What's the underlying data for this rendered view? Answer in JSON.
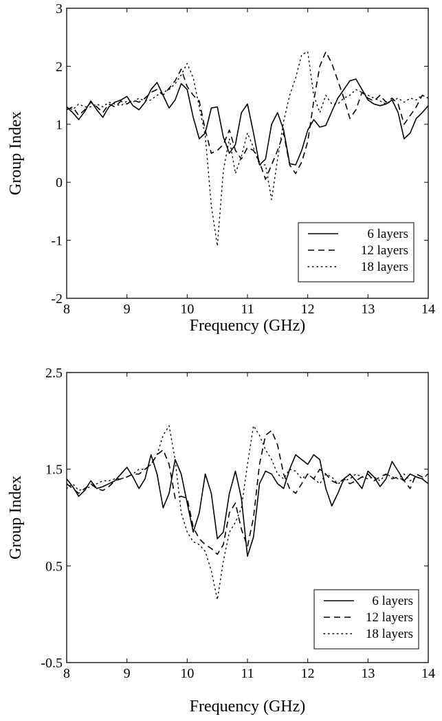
{
  "chart_data": [
    {
      "type": "line",
      "title": "",
      "xlabel": "Frequency (GHz)",
      "ylabel": "Group Index",
      "xlim": [
        8,
        14
      ],
      "ylim": [
        -2,
        3
      ],
      "xticks": [
        8,
        9,
        10,
        11,
        12,
        13,
        14
      ],
      "xtick_labels": [
        "8",
        "9",
        "10",
        "11",
        "12",
        "13",
        "14"
      ],
      "yticks": [
        -2,
        -1,
        0,
        1,
        2,
        3
      ],
      "ytick_labels": [
        "-2",
        "-1",
        "0",
        "1",
        "2",
        "3"
      ],
      "grid": false,
      "legend_position": "lower-right",
      "series": [
        {
          "name": "6 layers",
          "style": "solid",
          "x": [
            8,
            8.1,
            8.2,
            8.3,
            8.4,
            8.5,
            8.6,
            8.7,
            8.8,
            8.9,
            9,
            9.1,
            9.2,
            9.3,
            9.4,
            9.5,
            9.6,
            9.7,
            9.8,
            9.9,
            10,
            10.1,
            10.2,
            10.3,
            10.4,
            10.5,
            10.6,
            10.7,
            10.8,
            10.9,
            11,
            11.1,
            11.2,
            11.3,
            11.4,
            11.5,
            11.6,
            11.7,
            11.8,
            11.9,
            12,
            12.1,
            12.2,
            12.3,
            12.4,
            12.5,
            12.6,
            12.7,
            12.8,
            12.9,
            13,
            13.1,
            13.2,
            13.3,
            13.4,
            13.5,
            13.6,
            13.7,
            13.8,
            13.9,
            14
          ],
          "y": [
            1.3,
            1.2,
            1.08,
            1.22,
            1.4,
            1.25,
            1.12,
            1.3,
            1.38,
            1.42,
            1.48,
            1.32,
            1.25,
            1.38,
            1.6,
            1.72,
            1.5,
            1.28,
            1.42,
            1.7,
            1.6,
            1.12,
            0.75,
            0.85,
            1.28,
            1.3,
            0.78,
            0.5,
            0.65,
            1.2,
            1.35,
            0.85,
            0.3,
            0.4,
            1.0,
            1.2,
            0.9,
            0.32,
            0.3,
            0.55,
            0.9,
            1.08,
            0.95,
            0.98,
            1.22,
            1.45,
            1.6,
            1.75,
            1.78,
            1.6,
            1.42,
            1.35,
            1.32,
            1.35,
            1.42,
            1.2,
            0.75,
            0.85,
            1.1,
            1.2,
            1.32
          ]
        },
        {
          "name": "12 layers",
          "style": "dashed",
          "x": [
            8,
            8.1,
            8.2,
            8.3,
            8.4,
            8.5,
            8.6,
            8.7,
            8.8,
            8.9,
            9,
            9.1,
            9.2,
            9.3,
            9.4,
            9.5,
            9.6,
            9.7,
            9.8,
            9.9,
            10,
            10.1,
            10.2,
            10.3,
            10.4,
            10.5,
            10.6,
            10.7,
            10.8,
            10.9,
            11,
            11.1,
            11.2,
            11.3,
            11.4,
            11.5,
            11.6,
            11.7,
            11.8,
            11.9,
            12,
            12.1,
            12.2,
            12.3,
            12.4,
            12.5,
            12.6,
            12.7,
            12.8,
            12.9,
            13,
            13.1,
            13.2,
            13.3,
            13.4,
            13.5,
            13.6,
            13.7,
            13.8,
            13.9,
            14
          ],
          "y": [
            1.25,
            1.3,
            1.15,
            1.25,
            1.38,
            1.3,
            1.2,
            1.35,
            1.3,
            1.4,
            1.35,
            1.42,
            1.38,
            1.45,
            1.55,
            1.6,
            1.5,
            1.62,
            1.75,
            1.95,
            1.65,
            1.5,
            1.4,
            0.9,
            0.5,
            0.55,
            0.65,
            0.9,
            0.55,
            0.4,
            0.6,
            0.55,
            0.35,
            0.05,
            0.3,
            0.55,
            0.85,
            0.3,
            0.15,
            0.35,
            0.7,
            1.4,
            2.0,
            2.25,
            2.05,
            1.75,
            1.45,
            1.1,
            1.25,
            1.55,
            1.45,
            1.4,
            1.5,
            1.38,
            1.45,
            1.35,
            1.0,
            1.15,
            1.3,
            1.5,
            1.45
          ]
        },
        {
          "name": "18 layers",
          "style": "dotted",
          "x": [
            8,
            8.1,
            8.2,
            8.3,
            8.4,
            8.5,
            8.6,
            8.7,
            8.8,
            8.9,
            9,
            9.1,
            9.2,
            9.3,
            9.4,
            9.5,
            9.6,
            9.7,
            9.8,
            9.9,
            10,
            10.1,
            10.2,
            10.3,
            10.4,
            10.5,
            10.6,
            10.7,
            10.8,
            10.9,
            11,
            11.1,
            11.2,
            11.3,
            11.4,
            11.5,
            11.6,
            11.7,
            11.8,
            11.9,
            12,
            12.1,
            12.2,
            12.3,
            12.4,
            12.5,
            12.6,
            12.7,
            12.8,
            12.9,
            13,
            13.1,
            13.2,
            13.3,
            13.4,
            13.5,
            13.6,
            13.7,
            13.8,
            13.9,
            14
          ],
          "y": [
            1.3,
            1.25,
            1.35,
            1.3,
            1.3,
            1.35,
            1.3,
            1.38,
            1.35,
            1.32,
            1.4,
            1.38,
            1.45,
            1.4,
            1.42,
            1.5,
            1.55,
            1.6,
            1.7,
            1.85,
            2.05,
            1.8,
            1.3,
            0.8,
            -0.4,
            -1.1,
            0.2,
            0.75,
            0.15,
            0.45,
            0.85,
            0.6,
            0.3,
            0.3,
            -0.3,
            0.4,
            1.05,
            1.5,
            1.8,
            2.2,
            2.25,
            1.5,
            1.2,
            1.5,
            1.35,
            1.35,
            1.45,
            1.5,
            1.6,
            1.55,
            1.5,
            1.45,
            1.4,
            1.35,
            1.4,
            1.45,
            1.38,
            1.45,
            1.42,
            1.5,
            1.45
          ]
        }
      ]
    },
    {
      "type": "line",
      "title": "",
      "xlabel": "Frequency (GHz)",
      "ylabel": "Group Index",
      "xlim": [
        8,
        14
      ],
      "ylim": [
        -0.5,
        2.5
      ],
      "xticks": [
        8,
        9,
        10,
        11,
        12,
        13,
        14
      ],
      "xtick_labels": [
        "8",
        "9",
        "10",
        "11",
        "12",
        "13",
        "14"
      ],
      "yticks": [
        -0.5,
        0.5,
        1.5,
        2.5
      ],
      "ytick_labels": [
        "-0.5",
        "0.5",
        "1.5",
        "2.5"
      ],
      "grid": false,
      "legend_position": "lower-right",
      "series": [
        {
          "name": "6 layers",
          "style": "solid",
          "x": [
            8,
            8.1,
            8.2,
            8.3,
            8.4,
            8.5,
            8.6,
            8.7,
            8.8,
            8.9,
            9,
            9.1,
            9.2,
            9.3,
            9.4,
            9.5,
            9.6,
            9.7,
            9.8,
            9.9,
            10,
            10.1,
            10.2,
            10.3,
            10.4,
            10.5,
            10.6,
            10.7,
            10.8,
            10.9,
            11,
            11.1,
            11.2,
            11.3,
            11.4,
            11.5,
            11.6,
            11.7,
            11.8,
            11.9,
            12,
            12.1,
            12.2,
            12.3,
            12.4,
            12.5,
            12.6,
            12.7,
            12.8,
            12.9,
            13,
            13.1,
            13.2,
            13.3,
            13.4,
            13.5,
            13.6,
            13.7,
            13.8,
            13.9,
            14
          ],
          "y": [
            1.4,
            1.32,
            1.22,
            1.28,
            1.38,
            1.3,
            1.32,
            1.35,
            1.38,
            1.45,
            1.52,
            1.42,
            1.3,
            1.4,
            1.65,
            1.45,
            1.1,
            1.25,
            1.6,
            1.45,
            1.15,
            0.85,
            1.05,
            1.45,
            1.25,
            0.78,
            0.85,
            1.25,
            1.48,
            1.2,
            0.6,
            0.8,
            1.35,
            1.48,
            1.45,
            1.35,
            1.3,
            1.5,
            1.65,
            1.6,
            1.55,
            1.65,
            1.6,
            1.3,
            1.12,
            1.25,
            1.4,
            1.45,
            1.38,
            1.3,
            1.48,
            1.42,
            1.32,
            1.4,
            1.58,
            1.48,
            1.38,
            1.45,
            1.42,
            1.4,
            1.35
          ]
        },
        {
          "name": "12 layers",
          "style": "dashed",
          "x": [
            8,
            8.1,
            8.2,
            8.3,
            8.4,
            8.5,
            8.6,
            8.7,
            8.8,
            8.9,
            9,
            9.1,
            9.2,
            9.3,
            9.4,
            9.5,
            9.6,
            9.7,
            9.8,
            9.9,
            10,
            10.1,
            10.2,
            10.3,
            10.4,
            10.5,
            10.6,
            10.7,
            10.8,
            10.9,
            11,
            11.1,
            11.2,
            11.3,
            11.4,
            11.5,
            11.6,
            11.7,
            11.8,
            11.9,
            12,
            12.1,
            12.2,
            12.3,
            12.4,
            12.5,
            12.6,
            12.7,
            12.8,
            12.9,
            13,
            13.1,
            13.2,
            13.3,
            13.4,
            13.5,
            13.6,
            13.7,
            13.8,
            13.9,
            14
          ],
          "y": [
            1.35,
            1.3,
            1.25,
            1.3,
            1.35,
            1.3,
            1.28,
            1.32,
            1.38,
            1.4,
            1.42,
            1.45,
            1.45,
            1.5,
            1.55,
            1.65,
            1.7,
            1.55,
            1.2,
            1.22,
            1.2,
            0.9,
            0.78,
            0.72,
            0.68,
            0.62,
            0.72,
            1.05,
            1.15,
            0.88,
            0.7,
            1.0,
            1.55,
            1.85,
            1.9,
            1.75,
            1.45,
            1.3,
            1.25,
            1.35,
            1.45,
            1.4,
            1.5,
            1.45,
            1.38,
            1.35,
            1.4,
            1.35,
            1.38,
            1.42,
            1.45,
            1.38,
            1.42,
            1.45,
            1.4,
            1.42,
            1.38,
            1.3,
            1.45,
            1.42,
            1.45
          ]
        },
        {
          "name": "18 layers",
          "style": "dotted",
          "x": [
            8,
            8.1,
            8.2,
            8.3,
            8.4,
            8.5,
            8.6,
            8.7,
            8.8,
            8.9,
            9,
            9.1,
            9.2,
            9.3,
            9.4,
            9.5,
            9.6,
            9.7,
            9.8,
            9.9,
            10,
            10.1,
            10.2,
            10.3,
            10.4,
            10.5,
            10.6,
            10.7,
            10.8,
            10.9,
            11,
            11.1,
            11.2,
            11.3,
            11.4,
            11.5,
            11.6,
            11.7,
            11.8,
            11.9,
            12,
            12.1,
            12.2,
            12.3,
            12.4,
            12.5,
            12.6,
            12.7,
            12.8,
            12.9,
            13,
            13.1,
            13.2,
            13.3,
            13.4,
            13.5,
            13.6,
            13.7,
            13.8,
            13.9,
            14
          ],
          "y": [
            1.3,
            1.35,
            1.28,
            1.3,
            1.32,
            1.35,
            1.38,
            1.38,
            1.4,
            1.4,
            1.42,
            1.45,
            1.5,
            1.5,
            1.55,
            1.65,
            1.85,
            1.95,
            1.6,
            1.05,
            0.85,
            0.75,
            0.72,
            0.65,
            0.45,
            0.15,
            0.55,
            0.85,
            0.95,
            1.1,
            1.55,
            1.95,
            1.85,
            1.7,
            1.6,
            1.45,
            1.4,
            1.5,
            1.48,
            1.4,
            1.45,
            1.4,
            1.35,
            1.45,
            1.42,
            1.35,
            1.38,
            1.4,
            1.45,
            1.42,
            1.4,
            1.42,
            1.38,
            1.45,
            1.42,
            1.4,
            1.45,
            1.38,
            1.42,
            1.4,
            1.45
          ]
        }
      ]
    }
  ]
}
